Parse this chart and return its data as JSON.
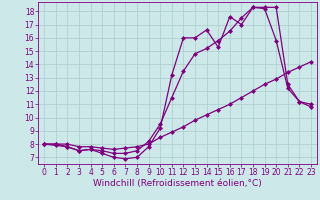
{
  "xlabel": "Windchill (Refroidissement éolien,°C)",
  "bg_color": "#cce8e8",
  "line_color": "#800080",
  "xlim": [
    -0.5,
    23.5
  ],
  "ylim": [
    6.5,
    18.7
  ],
  "xticks": [
    0,
    1,
    2,
    3,
    4,
    5,
    6,
    7,
    8,
    9,
    10,
    11,
    12,
    13,
    14,
    15,
    16,
    17,
    18,
    19,
    20,
    21,
    22,
    23
  ],
  "yticks": [
    7,
    8,
    9,
    10,
    11,
    12,
    13,
    14,
    15,
    16,
    17,
    18
  ],
  "series1_x": [
    0,
    1,
    2,
    3,
    4,
    5,
    6,
    7,
    8,
    9,
    10,
    11,
    12,
    13,
    14,
    15,
    16,
    17,
    18,
    19,
    20,
    21,
    22,
    23
  ],
  "series1_y": [
    8.0,
    7.9,
    7.8,
    7.5,
    7.6,
    7.3,
    7.0,
    6.9,
    7.0,
    7.8,
    9.2,
    13.2,
    16.0,
    16.0,
    16.6,
    15.3,
    17.6,
    17.0,
    18.3,
    18.2,
    15.8,
    12.2,
    11.2,
    11.0
  ],
  "series2_x": [
    0,
    1,
    2,
    3,
    4,
    5,
    6,
    7,
    8,
    9,
    10,
    11,
    12,
    13,
    14,
    15,
    16,
    17,
    18,
    19,
    20,
    21,
    22,
    23
  ],
  "series2_y": [
    8.0,
    8.0,
    7.8,
    7.5,
    7.6,
    7.5,
    7.3,
    7.3,
    7.5,
    8.2,
    9.5,
    11.5,
    13.5,
    14.8,
    15.2,
    15.8,
    16.5,
    17.5,
    18.3,
    18.3,
    18.3,
    12.5,
    11.2,
    10.8
  ],
  "series3_x": [
    0,
    1,
    2,
    3,
    4,
    5,
    6,
    7,
    8,
    9,
    10,
    11,
    12,
    13,
    14,
    15,
    16,
    17,
    18,
    19,
    20,
    21,
    22,
    23
  ],
  "series3_y": [
    8.0,
    8.0,
    8.0,
    7.8,
    7.8,
    7.7,
    7.6,
    7.7,
    7.8,
    8.0,
    8.5,
    8.9,
    9.3,
    9.8,
    10.2,
    10.6,
    11.0,
    11.5,
    12.0,
    12.5,
    12.9,
    13.4,
    13.8,
    14.2
  ],
  "marker": "D",
  "markersize": 2,
  "linewidth": 0.9,
  "grid_color": "#aacccc",
  "tick_labelsize": 5.5,
  "xlabel_fontsize": 6.5
}
